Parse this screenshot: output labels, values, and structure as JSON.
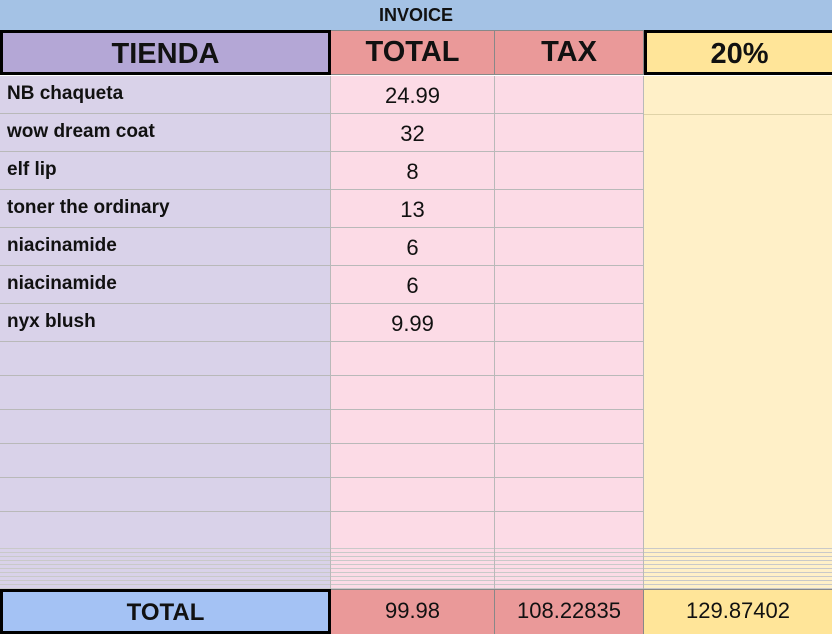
{
  "sheet": {
    "title": "INVOICE",
    "headers": {
      "store": "TIENDA",
      "total": "TOTAL",
      "tax": "TAX",
      "rate": "20%"
    },
    "rows": [
      {
        "store": "NB chaqueta",
        "total": "24.99"
      },
      {
        "store": "wow dream coat",
        "total": "32"
      },
      {
        "store": "elf lip",
        "total": "8"
      },
      {
        "store": "toner the ordinary",
        "total": "13"
      },
      {
        "store": "niacinamide",
        "total": "6"
      },
      {
        "store": "niacinamide",
        "total": "6"
      },
      {
        "store": "nyx blush",
        "total": "9.99"
      },
      {
        "store": "",
        "total": ""
      },
      {
        "store": "",
        "total": ""
      },
      {
        "store": "",
        "total": ""
      },
      {
        "store": "",
        "total": ""
      },
      {
        "store": "",
        "total": ""
      },
      {
        "store": "",
        "total": ""
      }
    ],
    "footer": {
      "label": "TOTAL",
      "total": "99.98",
      "tax": "108.22835",
      "rate": "129.87402"
    },
    "colors": {
      "title_bg": "#a4c2e5",
      "store_header": "#b4a7d6",
      "store_cells": "#d9d2e9",
      "total_header": "#ea9999",
      "total_cells": "#fcdbe6",
      "rate_header": "#ffe599",
      "rate_cells": "#fff0c8",
      "footer_label": "#a4c2f4"
    }
  }
}
